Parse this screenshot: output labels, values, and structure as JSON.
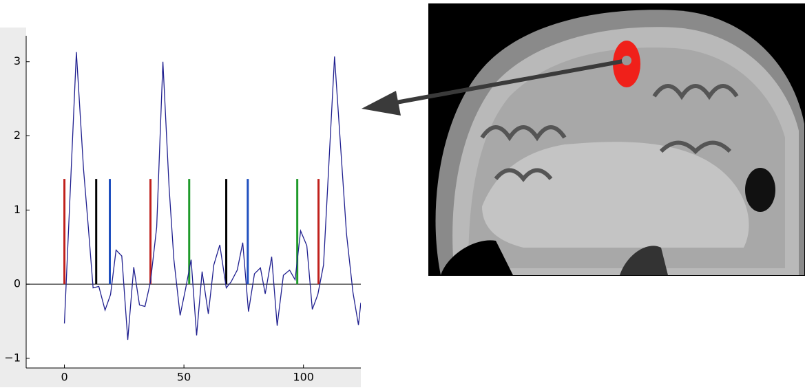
{
  "chart_data": {
    "type": "line",
    "x": [
      0,
      5,
      8,
      10,
      12,
      14.4,
      17,
      19.3,
      21.6,
      24,
      26.5,
      29,
      31.4,
      33.7,
      36,
      38.6,
      41.2,
      43.8,
      45.8,
      48.4,
      50.7,
      53,
      55.3,
      57.6,
      60.2,
      62.5,
      65,
      67.7,
      69.7,
      72.3,
      74.6,
      77,
      79.5,
      82,
      84,
      86.7,
      89,
      91.6,
      94.2,
      96.5,
      98.8,
      101.4,
      103.7,
      106,
      108.4,
      113,
      118,
      120.7,
      123,
      124
    ],
    "series": [
      {
        "color": "#1f1f8f",
        "values": [
          -0.53,
          3.13,
          1.55,
          0.77,
          -0.05,
          -0.03,
          -0.35,
          -0.14,
          0.46,
          0.38,
          -0.75,
          0.23,
          -0.28,
          -0.3,
          0.03,
          0.77,
          3.0,
          1.3,
          0.33,
          -0.42,
          -0.06,
          0.33,
          -0.69,
          0.17,
          -0.4,
          0.26,
          0.53,
          -0.05,
          0.03,
          0.19,
          0.56,
          -0.37,
          0.14,
          0.22,
          -0.13,
          0.37,
          -0.56,
          0.12,
          0.19,
          0.06,
          0.72,
          0.52,
          -0.34,
          -0.14,
          0.26,
          3.07,
          0.68,
          -0.11,
          -0.55,
          -0.25
        ]
      }
    ],
    "stems": {
      "x": [
        0,
        13.3,
        19,
        36,
        52.2,
        67.7,
        76.7,
        97.4,
        106.3
      ],
      "colors": [
        "#c0201c",
        "#000000",
        "#1f4fbf",
        "#c0201c",
        "#1f9a2a",
        "#000000",
        "#1f4fbf",
        "#1f9a2a",
        "#c0201c"
      ],
      "height": 1.42
    },
    "hline": 0,
    "xlim": [
      -16,
      124
    ],
    "ylim": [
      -1.13,
      3.35
    ],
    "xticks": [
      0,
      50,
      100
    ],
    "yticks": [
      {
        "value": -1,
        "label": "−1"
      },
      0,
      1,
      2,
      3
    ]
  }
}
